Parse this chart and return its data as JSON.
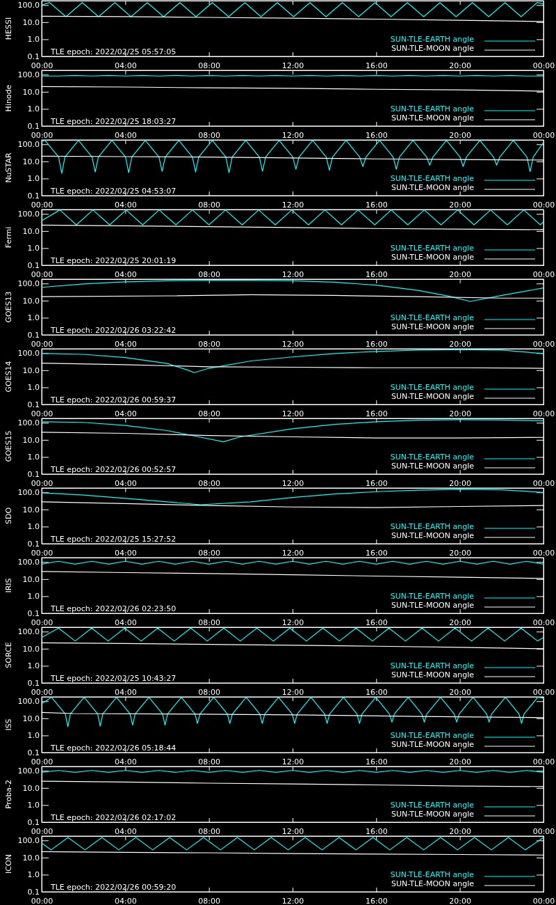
{
  "chart_data": [
    {
      "type": "line",
      "ylabel": "HESSI",
      "log": true,
      "legend": "bottom right",
      "xlim": [
        0,
        24
      ],
      "ylim": [
        0.1,
        180
      ],
      "xticks": [
        {
          "value": 0,
          "label": "00:00"
        },
        {
          "value": 4,
          "label": "04:00"
        },
        {
          "value": 8,
          "label": "08:00"
        },
        {
          "value": 12,
          "label": "12:00"
        },
        {
          "value": 16,
          "label": "16:00"
        },
        {
          "value": 20,
          "label": "20:00"
        },
        {
          "value": 24,
          "label": "00:00"
        }
      ],
      "yticks": [
        {
          "value": 0.1,
          "label": "0.1"
        },
        {
          "value": 1,
          "label": "1.0"
        },
        {
          "value": 10,
          "label": "10.0"
        },
        {
          "value": 100,
          "label": "100.0"
        }
      ],
      "annotations": [
        "TLE epoch: 2022/02/25 05:57:05"
      ],
      "series": [
        {
          "name": "SUN-TLE-EARTH angle",
          "color": "#00ffff",
          "x": [
            0,
            0.38,
            1.16,
            1.94,
            2.72,
            3.5,
            4.27,
            5.05,
            5.83,
            6.61,
            7.38,
            8.16,
            8.94,
            9.72,
            10.49,
            11.27,
            12.05,
            12.83,
            13.6,
            14.38,
            15.16,
            15.94,
            16.71,
            17.49,
            18.27,
            19.05,
            19.82,
            20.6,
            21.38,
            22.16,
            22.93,
            23.7,
            24
          ],
          "values": [
            100,
            140,
            21,
            140,
            21,
            140,
            21,
            140,
            21,
            140,
            21,
            140,
            21,
            140,
            21,
            140,
            21,
            140,
            21,
            140,
            21,
            140,
            21,
            140,
            21,
            140,
            21,
            140,
            21,
            140,
            21,
            140,
            120
          ]
        },
        {
          "name": "SUN-TLE-MOON angle",
          "color": "#ffffff",
          "x": [
            0,
            4,
            8,
            12,
            16,
            20,
            24
          ],
          "values": [
            22,
            21,
            19,
            17,
            15,
            13,
            11
          ]
        }
      ]
    },
    {
      "type": "line",
      "ylabel": "Hinode",
      "log": true,
      "legend": "bottom right",
      "xlim": [
        0,
        24
      ],
      "ylim": [
        0.1,
        180
      ],
      "xticks": [
        {
          "value": 0,
          "label": "00:00"
        },
        {
          "value": 4,
          "label": "04:00"
        },
        {
          "value": 8,
          "label": "08:00"
        },
        {
          "value": 12,
          "label": "12:00"
        },
        {
          "value": 16,
          "label": "16:00"
        },
        {
          "value": 20,
          "label": "20:00"
        },
        {
          "value": 24,
          "label": "00:00"
        }
      ],
      "yticks": [
        {
          "value": 0.1,
          "label": "0.1"
        },
        {
          "value": 1,
          "label": "1.0"
        },
        {
          "value": 10,
          "label": "10.0"
        },
        {
          "value": 100,
          "label": "100.0"
        }
      ],
      "annotations": [
        "TLE epoch: 2022/02/25 18:03:27"
      ],
      "series": [
        {
          "name": "SUN-TLE-EARTH angle",
          "color": "#00ffff",
          "x": [
            0,
            0.8,
            1.6,
            2.4,
            3.2,
            4,
            4.8,
            5.6,
            6.4,
            7.2,
            8,
            8.8,
            9.6,
            10.4,
            11.2,
            12,
            12.8,
            13.6,
            14.4,
            15.2,
            16,
            16.8,
            17.6,
            18.4,
            19.2,
            20,
            20.8,
            21.6,
            22.4,
            23.2,
            24
          ],
          "values": [
            83,
            83,
            91,
            83,
            91,
            83,
            91,
            83,
            91,
            83,
            91,
            83,
            91,
            83,
            91,
            83,
            91,
            83,
            91,
            83,
            91,
            83,
            91,
            83,
            91,
            83,
            91,
            83,
            91,
            83,
            83
          ]
        },
        {
          "name": "SUN-TLE-MOON angle",
          "color": "#ffffff",
          "x": [
            0,
            4,
            8,
            12,
            16,
            20,
            24
          ],
          "values": [
            20,
            19,
            17,
            16,
            14,
            13,
            11
          ]
        }
      ]
    },
    {
      "type": "line",
      "ylabel": "NuSTAR",
      "log": true,
      "legend": "bottom right",
      "xlim": [
        0,
        24
      ],
      "ylim": [
        0.1,
        180
      ],
      "xticks": [
        {
          "value": 0,
          "label": "00:00"
        },
        {
          "value": 4,
          "label": "04:00"
        },
        {
          "value": 8,
          "label": "08:00"
        },
        {
          "value": 12,
          "label": "12:00"
        },
        {
          "value": 16,
          "label": "16:00"
        },
        {
          "value": 20,
          "label": "20:00"
        },
        {
          "value": 24,
          "label": "00:00"
        }
      ],
      "yticks": [
        {
          "value": 0.1,
          "label": "0.1"
        },
        {
          "value": 1,
          "label": "1.0"
        },
        {
          "value": 10,
          "label": "10.0"
        },
        {
          "value": 100,
          "label": "100.0"
        }
      ],
      "annotations": [
        "TLE epoch: 2022/02/25 04:53:07"
      ],
      "series": [
        {
          "name": "SUN-TLE-EARTH angle",
          "color": "#00ffff",
          "x": [
            0,
            0.16,
            0.81,
            0.96,
            1.11,
            1.76,
            2.41,
            2.56,
            2.71,
            3.36,
            4.01,
            4.16,
            4.31,
            4.96,
            5.61,
            5.76,
            5.91,
            6.56,
            7.21,
            7.36,
            7.51,
            8.16,
            8.81,
            8.96,
            9.11,
            9.76,
            10.41,
            10.56,
            10.71,
            11.36,
            12.01,
            12.16,
            12.31,
            12.96,
            13.61,
            13.76,
            13.91,
            14.56,
            15.21,
            15.36,
            15.51,
            16.16,
            16.81,
            16.96,
            17.11,
            17.76,
            18.41,
            18.56,
            18.71,
            19.36,
            20.01,
            20.16,
            20.31,
            20.96,
            21.61,
            21.76,
            21.91,
            22.56,
            23.21,
            23.36,
            23.51,
            24
          ],
          "values": [
            150,
            170,
            18,
            2,
            18,
            170,
            18,
            2.4,
            18,
            170,
            18,
            2.2,
            18,
            170,
            18,
            2.6,
            18,
            170,
            18,
            2.4,
            18,
            170,
            18,
            2.2,
            18,
            170,
            18,
            2.6,
            18,
            170,
            18,
            3.5,
            18,
            170,
            18,
            3,
            18,
            170,
            18,
            5,
            18,
            170,
            18,
            3.5,
            18,
            170,
            18,
            6,
            18,
            170,
            18,
            5,
            18,
            170,
            18,
            6,
            18,
            170,
            18,
            2.5,
            18,
            130
          ]
        },
        {
          "name": "SUN-TLE-MOON angle",
          "color": "#ffffff",
          "x": [
            0,
            4,
            8,
            12,
            16,
            20,
            24
          ],
          "values": [
            20,
            19,
            18,
            16,
            14,
            13,
            12
          ]
        }
      ]
    },
    {
      "type": "line",
      "ylabel": "Fermi",
      "log": true,
      "legend": "bottom right",
      "xlim": [
        0,
        24
      ],
      "ylim": [
        0.1,
        180
      ],
      "xticks": [
        {
          "value": 0,
          "label": "00:00"
        },
        {
          "value": 4,
          "label": "04:00"
        },
        {
          "value": 8,
          "label": "08:00"
        },
        {
          "value": 12,
          "label": "12:00"
        },
        {
          "value": 16,
          "label": "16:00"
        },
        {
          "value": 20,
          "label": "20:00"
        },
        {
          "value": 24,
          "label": "00:00"
        }
      ],
      "yticks": [
        {
          "value": 0.1,
          "label": "0.1"
        },
        {
          "value": 1,
          "label": "1.0"
        },
        {
          "value": 10,
          "label": "10.0"
        },
        {
          "value": 100,
          "label": "100.0"
        }
      ],
      "annotations": [
        "TLE epoch: 2022/02/25 20:01:19"
      ],
      "series": [
        {
          "name": "SUN-TLE-EARTH angle",
          "color": "#00ffff",
          "x": [
            0,
            0.87,
            1.66,
            2.45,
            3.25,
            4.04,
            4.83,
            5.62,
            6.42,
            7.21,
            8,
            8.79,
            9.59,
            10.38,
            11.17,
            11.96,
            12.76,
            13.55,
            14.34,
            15.13,
            15.93,
            16.72,
            17.51,
            18.3,
            19.1,
            19.89,
            20.68,
            21.47,
            22.27,
            23.06,
            23.85,
            24
          ],
          "values": [
            40,
            170,
            23,
            170,
            23,
            170,
            23,
            170,
            23,
            170,
            23,
            170,
            23,
            170,
            23,
            170,
            23,
            170,
            23,
            170,
            23,
            170,
            23,
            170,
            23,
            170,
            23,
            170,
            23,
            170,
            23,
            35
          ]
        },
        {
          "name": "SUN-TLE-MOON angle",
          "color": "#ffffff",
          "x": [
            0,
            4,
            8,
            12,
            16,
            20,
            24
          ],
          "values": [
            22,
            20,
            18,
            16,
            14,
            13,
            12
          ]
        }
      ]
    },
    {
      "type": "line",
      "ylabel": "GOES13",
      "log": true,
      "legend": "bottom right",
      "xlim": [
        0,
        24
      ],
      "ylim": [
        0.1,
        180
      ],
      "xticks": [
        {
          "value": 0,
          "label": "00:00"
        },
        {
          "value": 4,
          "label": "04:00"
        },
        {
          "value": 8,
          "label": "08:00"
        },
        {
          "value": 12,
          "label": "12:00"
        },
        {
          "value": 16,
          "label": "16:00"
        },
        {
          "value": 20,
          "label": "20:00"
        },
        {
          "value": 24,
          "label": "00:00"
        }
      ],
      "yticks": [
        {
          "value": 0.1,
          "label": "0.1"
        },
        {
          "value": 1,
          "label": "1.0"
        },
        {
          "value": 10,
          "label": "10.0"
        },
        {
          "value": 100,
          "label": "100.0"
        }
      ],
      "annotations": [
        "TLE epoch: 2022/02/26 03:22:42"
      ],
      "series": [
        {
          "name": "SUN-TLE-EARTH angle",
          "color": "#00ffff",
          "x": [
            0,
            2,
            4,
            6,
            8,
            10,
            12,
            14,
            16,
            18,
            19.5,
            20.5,
            22,
            24
          ],
          "values": [
            60,
            95,
            125,
            145,
            155,
            155,
            145,
            120,
            80,
            40,
            18,
            9,
            20,
            55
          ]
        },
        {
          "name": "SUN-TLE-MOON angle",
          "color": "#ffffff",
          "x": [
            0,
            6,
            10,
            14,
            18,
            22,
            24
          ],
          "values": [
            17,
            19,
            22,
            20,
            17,
            14,
            14
          ]
        }
      ]
    },
    {
      "type": "line",
      "ylabel": "GOES14",
      "log": true,
      "legend": "bottom right",
      "xlim": [
        0,
        24
      ],
      "ylim": [
        0.1,
        180
      ],
      "xticks": [
        {
          "value": 0,
          "label": "00:00"
        },
        {
          "value": 4,
          "label": "04:00"
        },
        {
          "value": 8,
          "label": "08:00"
        },
        {
          "value": 12,
          "label": "12:00"
        },
        {
          "value": 16,
          "label": "16:00"
        },
        {
          "value": 20,
          "label": "20:00"
        },
        {
          "value": 24,
          "label": "00:00"
        }
      ],
      "yticks": [
        {
          "value": 0.1,
          "label": "0.1"
        },
        {
          "value": 1,
          "label": "1.0"
        },
        {
          "value": 10,
          "label": "10.0"
        },
        {
          "value": 100,
          "label": "100.0"
        }
      ],
      "annotations": [
        "TLE epoch: 2022/02/26 00:59:37"
      ],
      "series": [
        {
          "name": "SUN-TLE-EARTH angle",
          "color": "#00ffff",
          "x": [
            0,
            2,
            4,
            6,
            7,
            7.3,
            8,
            10,
            12,
            14,
            16,
            18,
            20,
            22,
            24
          ],
          "values": [
            97,
            85,
            55,
            25,
            10,
            7.3,
            13,
            35,
            60,
            95,
            125,
            150,
            160,
            150,
            94
          ]
        },
        {
          "name": "SUN-TLE-MOON angle",
          "color": "#ffffff",
          "x": [
            0,
            4,
            8,
            12,
            16,
            20,
            24
          ],
          "values": [
            26,
            21,
            16,
            15,
            14,
            14,
            13
          ]
        }
      ]
    },
    {
      "type": "line",
      "ylabel": "GOES15",
      "log": true,
      "legend": "bottom right",
      "xlim": [
        0,
        24
      ],
      "ylim": [
        0.1,
        180
      ],
      "xticks": [
        {
          "value": 0,
          "label": "00:00"
        },
        {
          "value": 4,
          "label": "04:00"
        },
        {
          "value": 8,
          "label": "08:00"
        },
        {
          "value": 12,
          "label": "12:00"
        },
        {
          "value": 16,
          "label": "16:00"
        },
        {
          "value": 20,
          "label": "20:00"
        },
        {
          "value": 24,
          "label": "00:00"
        }
      ],
      "yticks": [
        {
          "value": 0.1,
          "label": "0.1"
        },
        {
          "value": 1,
          "label": "1.0"
        },
        {
          "value": 10,
          "label": "10.0"
        },
        {
          "value": 100,
          "label": "100.0"
        }
      ],
      "annotations": [
        "TLE epoch: 2022/02/26 00:52:57"
      ],
      "series": [
        {
          "name": "SUN-TLE-EARTH angle",
          "color": "#00ffff",
          "x": [
            0,
            2,
            4,
            6,
            7.5,
            8.7,
            9.5,
            12,
            14,
            16,
            18,
            20,
            22,
            24
          ],
          "values": [
            113,
            105,
            70,
            35,
            15,
            7.7,
            15,
            45,
            80,
            115,
            140,
            150,
            145,
            130
          ]
        },
        {
          "name": "SUN-TLE-MOON angle",
          "color": "#ffffff",
          "x": [
            0,
            4,
            8,
            12,
            16,
            20,
            24
          ],
          "values": [
            28,
            24,
            18,
            15,
            13,
            13,
            14
          ]
        }
      ]
    },
    {
      "type": "line",
      "ylabel": "SDO",
      "log": true,
      "legend": "bottom right",
      "xlim": [
        0,
        24
      ],
      "ylim": [
        0.1,
        180
      ],
      "xticks": [
        {
          "value": 0,
          "label": "00:00"
        },
        {
          "value": 4,
          "label": "04:00"
        },
        {
          "value": 8,
          "label": "08:00"
        },
        {
          "value": 12,
          "label": "12:00"
        },
        {
          "value": 16,
          "label": "16:00"
        },
        {
          "value": 20,
          "label": "20:00"
        },
        {
          "value": 24,
          "label": "00:00"
        }
      ],
      "yticks": [
        {
          "value": 0.1,
          "label": "0.1"
        },
        {
          "value": 1,
          "label": "1.0"
        },
        {
          "value": 10,
          "label": "10.0"
        },
        {
          "value": 100,
          "label": "100.0"
        }
      ],
      "annotations": [
        "TLE epoch: 2022/02/25 15:27:52"
      ],
      "series": [
        {
          "name": "SUN-TLE-EARTH angle",
          "color": "#00ffff",
          "x": [
            0,
            2,
            4,
            6,
            7.6,
            10,
            12,
            14,
            16,
            18,
            20,
            22,
            24
          ],
          "values": [
            94,
            70,
            45,
            28,
            19,
            28,
            50,
            80,
            110,
            135,
            150,
            140,
            100
          ]
        },
        {
          "name": "SUN-TLE-MOON angle",
          "color": "#ffffff",
          "x": [
            0,
            4,
            8,
            12,
            16,
            20,
            24
          ],
          "values": [
            28,
            22,
            17,
            14,
            13,
            15,
            17
          ]
        }
      ]
    },
    {
      "type": "line",
      "ylabel": "IRIS",
      "log": true,
      "legend": "bottom right",
      "xlim": [
        0,
        24
      ],
      "ylim": [
        0.1,
        180
      ],
      "xticks": [
        {
          "value": 0,
          "label": "00:00"
        },
        {
          "value": 4,
          "label": "04:00"
        },
        {
          "value": 8,
          "label": "08:00"
        },
        {
          "value": 12,
          "label": "12:00"
        },
        {
          "value": 16,
          "label": "16:00"
        },
        {
          "value": 20,
          "label": "20:00"
        },
        {
          "value": 24,
          "label": "00:00"
        }
      ],
      "yticks": [
        {
          "value": 0.1,
          "label": "0.1"
        },
        {
          "value": 1,
          "label": "1.0"
        },
        {
          "value": 10,
          "label": "10.0"
        },
        {
          "value": 100,
          "label": "100.0"
        }
      ],
      "annotations": [
        "TLE epoch: 2022/02/26 02:23:50"
      ],
      "series": [
        {
          "name": "SUN-TLE-EARTH angle",
          "color": "#00ffff",
          "x": [
            0,
            0.8,
            1.6,
            2.4,
            3.2,
            4,
            4.8,
            5.6,
            6.4,
            7.2,
            8,
            8.8,
            9.6,
            10.4,
            11.2,
            12,
            12.8,
            13.6,
            14.4,
            15.2,
            16,
            16.8,
            17.6,
            18.4,
            19.2,
            20,
            20.8,
            21.6,
            22.4,
            23.2,
            24
          ],
          "values": [
            75,
            110,
            75,
            110,
            75,
            110,
            75,
            110,
            75,
            110,
            75,
            110,
            75,
            110,
            75,
            110,
            75,
            110,
            75,
            110,
            75,
            110,
            75,
            110,
            75,
            110,
            75,
            110,
            75,
            110,
            75
          ]
        },
        {
          "name": "SUN-TLE-MOON angle",
          "color": "#ffffff",
          "x": [
            0,
            4,
            8,
            12,
            16,
            20,
            24
          ],
          "values": [
            28,
            24,
            21,
            18,
            15,
            13,
            11
          ]
        }
      ]
    },
    {
      "type": "line",
      "ylabel": "SORCE",
      "log": true,
      "legend": "bottom right",
      "xlim": [
        0,
        24
      ],
      "ylim": [
        0.1,
        180
      ],
      "xticks": [
        {
          "value": 0,
          "label": "00:00"
        },
        {
          "value": 4,
          "label": "04:00"
        },
        {
          "value": 8,
          "label": "08:00"
        },
        {
          "value": 12,
          "label": "12:00"
        },
        {
          "value": 16,
          "label": "16:00"
        },
        {
          "value": 20,
          "label": "20:00"
        },
        {
          "value": 24,
          "label": "00:00"
        }
      ],
      "yticks": [
        {
          "value": 0.1,
          "label": "0.1"
        },
        {
          "value": 1,
          "label": "1.0"
        },
        {
          "value": 10,
          "label": "10.0"
        },
        {
          "value": 100,
          "label": "100.0"
        }
      ],
      "annotations": [
        "TLE epoch: 2022/02/25 10:43:27"
      ],
      "series": [
        {
          "name": "SUN-TLE-EARTH angle",
          "color": "#00ffff",
          "x": [
            0,
            0.81,
            1.6,
            2.39,
            3.18,
            3.97,
            4.76,
            5.55,
            6.34,
            7.13,
            7.92,
            8.71,
            9.5,
            10.29,
            11.08,
            11.87,
            12.66,
            13.45,
            14.24,
            15.03,
            15.82,
            16.61,
            17.4,
            18.19,
            18.98,
            19.77,
            20.56,
            21.35,
            22.14,
            22.93,
            23.72,
            24
          ],
          "values": [
            45,
            160,
            28,
            160,
            28,
            160,
            28,
            160,
            28,
            160,
            28,
            160,
            28,
            160,
            28,
            160,
            28,
            160,
            28,
            160,
            28,
            160,
            28,
            160,
            28,
            160,
            28,
            160,
            28,
            160,
            28,
            45
          ]
        },
        {
          "name": "SUN-TLE-MOON angle",
          "color": "#ffffff",
          "x": [
            0,
            4,
            8,
            12,
            16,
            20,
            24
          ],
          "values": [
            22,
            20,
            18,
            16,
            14,
            12,
            10
          ]
        }
      ]
    },
    {
      "type": "line",
      "ylabel": "ISS",
      "log": true,
      "legend": "bottom right",
      "xlim": [
        0,
        24
      ],
      "ylim": [
        0.1,
        180
      ],
      "xticks": [
        {
          "value": 0,
          "label": "00:00"
        },
        {
          "value": 4,
          "label": "04:00"
        },
        {
          "value": 8,
          "label": "08:00"
        },
        {
          "value": 12,
          "label": "12:00"
        },
        {
          "value": 16,
          "label": "16:00"
        },
        {
          "value": 20,
          "label": "20:00"
        },
        {
          "value": 24,
          "label": "00:00"
        }
      ],
      "yticks": [
        {
          "value": 0.1,
          "label": "0.1"
        },
        {
          "value": 1,
          "label": "1.0"
        },
        {
          "value": 10,
          "label": "10.0"
        },
        {
          "value": 100,
          "label": "100.0"
        }
      ],
      "annotations": [
        "TLE epoch: 2022/02/26 05:18:44"
      ],
      "series": [
        {
          "name": "SUN-TLE-EARTH angle",
          "color": "#00ffff",
          "x": [
            0,
            0.47,
            1.13,
            1.25,
            1.37,
            2.03,
            2.68,
            2.8,
            2.92,
            3.58,
            4.23,
            4.35,
            4.47,
            5.13,
            5.78,
            5.9,
            6.02,
            6.68,
            7.33,
            7.45,
            7.57,
            8.23,
            8.88,
            9,
            9.12,
            9.78,
            10.43,
            10.55,
            10.67,
            11.33,
            11.98,
            12.1,
            12.22,
            12.88,
            13.53,
            13.65,
            13.77,
            14.43,
            15.08,
            15.2,
            15.32,
            15.98,
            16.63,
            16.75,
            16.87,
            17.53,
            18.18,
            18.3,
            18.42,
            19.08,
            19.73,
            19.85,
            19.97,
            20.63,
            21.28,
            21.4,
            21.52,
            22.18,
            22.83,
            22.95,
            23.07,
            23.73,
            24
          ],
          "values": [
            71,
            170,
            18,
            3.2,
            18,
            170,
            18,
            3.5,
            18,
            170,
            18,
            4,
            18,
            170,
            18,
            4,
            18,
            170,
            18,
            5,
            18,
            170,
            18,
            5,
            18,
            170,
            18,
            5,
            18,
            170,
            18,
            5,
            18,
            170,
            18,
            5,
            18,
            170,
            18,
            5,
            18,
            170,
            18,
            6,
            18,
            170,
            18,
            6,
            18,
            170,
            18,
            6,
            18,
            170,
            18,
            6,
            18,
            170,
            18,
            5,
            18,
            170,
            150
          ]
        },
        {
          "name": "SUN-TLE-MOON angle",
          "color": "#ffffff",
          "x": [
            0,
            1.5,
            6,
            12,
            18,
            24
          ],
          "values": [
            22,
            19,
            18,
            16,
            13,
            11
          ]
        }
      ]
    },
    {
      "type": "line",
      "ylabel": "Proba-2",
      "log": true,
      "legend": "bottom right",
      "xlim": [
        0,
        24
      ],
      "ylim": [
        0.1,
        180
      ],
      "xticks": [
        {
          "value": 0,
          "label": "00:00"
        },
        {
          "value": 4,
          "label": "04:00"
        },
        {
          "value": 8,
          "label": "08:00"
        },
        {
          "value": 12,
          "label": "12:00"
        },
        {
          "value": 16,
          "label": "16:00"
        },
        {
          "value": 20,
          "label": "20:00"
        },
        {
          "value": 24,
          "label": "00:00"
        }
      ],
      "yticks": [
        {
          "value": 0.1,
          "label": "0.1"
        },
        {
          "value": 1,
          "label": "1.0"
        },
        {
          "value": 10,
          "label": "10.0"
        },
        {
          "value": 100,
          "label": "100.0"
        }
      ],
      "annotations": [
        "TLE epoch: 2022/02/26 02:17:02"
      ],
      "series": [
        {
          "name": "SUN-TLE-EARTH angle",
          "color": "#00ffff",
          "x": [
            0,
            0.8,
            1.6,
            2.4,
            3.2,
            4,
            4.8,
            5.6,
            6.4,
            7.2,
            8,
            8.8,
            9.6,
            10.4,
            11.2,
            12,
            12.8,
            13.6,
            14.4,
            15.2,
            16,
            16.8,
            17.6,
            18.4,
            19.2,
            20,
            20.8,
            21.6,
            22.4,
            23.2,
            24
          ],
          "values": [
            82,
            105,
            82,
            105,
            82,
            105,
            82,
            105,
            82,
            105,
            82,
            105,
            82,
            105,
            82,
            105,
            82,
            105,
            82,
            105,
            82,
            105,
            82,
            105,
            82,
            105,
            82,
            105,
            82,
            105,
            82
          ]
        },
        {
          "name": "SUN-TLE-MOON angle",
          "color": "#ffffff",
          "x": [
            0,
            4,
            8,
            12,
            16,
            20,
            24
          ],
          "values": [
            25,
            22,
            19,
            17,
            15,
            13,
            12
          ]
        }
      ]
    },
    {
      "type": "line",
      "ylabel": "ICON",
      "log": true,
      "legend": "bottom right",
      "xlim": [
        0,
        24
      ],
      "ylim": [
        0.1,
        180
      ],
      "xticks": [
        {
          "value": 0,
          "label": "00:00"
        },
        {
          "value": 4,
          "label": "04:00"
        },
        {
          "value": 8,
          "label": "08:00"
        },
        {
          "value": 12,
          "label": "12:00"
        },
        {
          "value": 16,
          "label": "16:00"
        },
        {
          "value": 20,
          "label": "20:00"
        },
        {
          "value": 24,
          "label": "00:00"
        }
      ],
      "yticks": [
        {
          "value": 0.1,
          "label": "0.1"
        },
        {
          "value": 1,
          "label": "1.0"
        },
        {
          "value": 10,
          "label": "10.0"
        },
        {
          "value": 100,
          "label": "100.0"
        }
      ],
      "annotations": [
        "TLE epoch: 2022/02/26 00:59:20"
      ],
      "series": [
        {
          "name": "SUN-TLE-EARTH angle",
          "color": "#00ffff",
          "x": [
            0,
            0.45,
            1.26,
            2.07,
            2.88,
            3.69,
            4.5,
            5.31,
            6.12,
            6.93,
            7.74,
            8.55,
            9.36,
            10.17,
            10.98,
            11.79,
            12.6,
            13.41,
            14.22,
            15.03,
            15.84,
            16.65,
            17.46,
            18.27,
            19.08,
            19.89,
            20.7,
            21.51,
            22.32,
            23.13,
            24
          ],
          "values": [
            70,
            28,
            150,
            28,
            150,
            28,
            150,
            28,
            150,
            28,
            150,
            28,
            150,
            28,
            150,
            28,
            150,
            28,
            150,
            28,
            150,
            28,
            150,
            28,
            150,
            28,
            150,
            28,
            150,
            28,
            150
          ]
        },
        {
          "name": "SUN-TLE-MOON angle",
          "color": "#ffffff",
          "x": [
            0,
            4,
            8,
            12,
            16,
            20,
            24
          ],
          "values": [
            22,
            20,
            19,
            17,
            16,
            15,
            14
          ]
        }
      ]
    }
  ]
}
